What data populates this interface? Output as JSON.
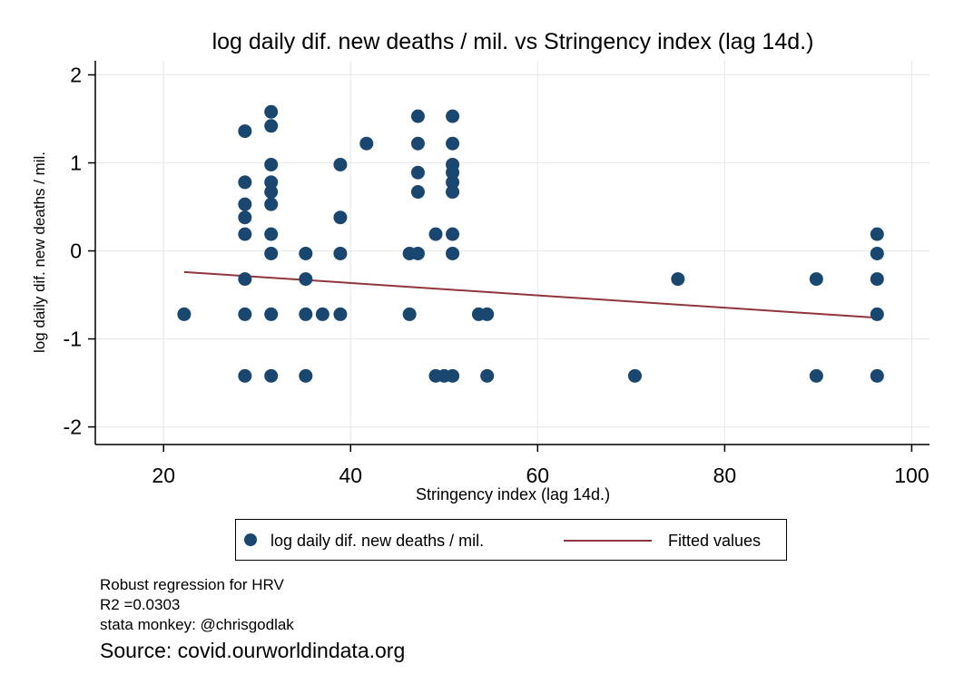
{
  "colors": {
    "marker": "#1a476f",
    "fit": "#90353b",
    "grid": "#eaeaea",
    "axis": "#000000"
  },
  "legend": {
    "series_label": "log daily dif. new deaths / mil.",
    "fit_label": "Fitted values"
  },
  "notes": {
    "line1": "Robust regression for HRV",
    "line2": "R2 =0.0303",
    "line3": "stata monkey: @chrisgodlak"
  },
  "source": "Source: covid.ourworldindata.org",
  "chart_data": {
    "type": "scatter",
    "title": "log daily dif. new deaths / mil. vs Stringency index (lag 14d.)",
    "xlabel": "Stringency index (lag 14d.)",
    "ylabel": "log daily dif. new deaths / mil.",
    "xlim": [
      12.7,
      101.9
    ],
    "ylim": [
      -2.2,
      2.16
    ],
    "xticks": [
      20,
      40,
      60,
      80,
      100
    ],
    "yticks": [
      -2,
      -1,
      0,
      1,
      2
    ],
    "grid": true,
    "legend_position": "bottom",
    "series": [
      {
        "name": "log daily dif. new deaths / mil.",
        "points": [
          [
            22.2,
            -0.72
          ],
          [
            28.7,
            1.36
          ],
          [
            28.7,
            0.78
          ],
          [
            28.7,
            0.53
          ],
          [
            28.7,
            0.38
          ],
          [
            28.7,
            0.19
          ],
          [
            28.7,
            -0.32
          ],
          [
            28.7,
            -0.72
          ],
          [
            28.7,
            -1.42
          ],
          [
            31.5,
            1.58
          ],
          [
            31.5,
            1.42
          ],
          [
            31.5,
            0.98
          ],
          [
            31.5,
            0.78
          ],
          [
            31.5,
            0.67
          ],
          [
            31.5,
            0.53
          ],
          [
            31.5,
            0.19
          ],
          [
            31.5,
            -0.03
          ],
          [
            31.5,
            -0.72
          ],
          [
            31.5,
            -1.42
          ],
          [
            35.2,
            -0.03
          ],
          [
            35.2,
            -0.32
          ],
          [
            35.2,
            -0.72
          ],
          [
            35.2,
            -1.42
          ],
          [
            37.0,
            -0.72
          ],
          [
            38.9,
            0.98
          ],
          [
            38.9,
            0.38
          ],
          [
            38.9,
            -0.03
          ],
          [
            38.9,
            -0.72
          ],
          [
            41.7,
            1.22
          ],
          [
            46.3,
            -0.03
          ],
          [
            46.3,
            -0.72
          ],
          [
            47.2,
            1.53
          ],
          [
            47.2,
            1.22
          ],
          [
            47.2,
            0.89
          ],
          [
            47.2,
            0.67
          ],
          [
            47.2,
            -0.03
          ],
          [
            49.1,
            0.19
          ],
          [
            49.1,
            -1.42
          ],
          [
            50.0,
            -1.42
          ],
          [
            50.9,
            1.53
          ],
          [
            50.9,
            1.22
          ],
          [
            50.9,
            0.98
          ],
          [
            50.9,
            0.89
          ],
          [
            50.9,
            0.78
          ],
          [
            50.9,
            0.67
          ],
          [
            50.9,
            0.19
          ],
          [
            50.9,
            -0.03
          ],
          [
            50.9,
            -1.42
          ],
          [
            53.7,
            -0.72
          ],
          [
            54.6,
            -0.72
          ],
          [
            54.6,
            -1.42
          ],
          [
            70.4,
            -1.42
          ],
          [
            75.0,
            -0.32
          ],
          [
            89.8,
            -0.32
          ],
          [
            89.8,
            -1.42
          ],
          [
            96.3,
            0.19
          ],
          [
            96.3,
            -0.03
          ],
          [
            96.3,
            -0.32
          ],
          [
            96.3,
            -0.72
          ],
          [
            96.3,
            -1.42
          ]
        ]
      },
      {
        "name": "Fitted values",
        "type": "line",
        "points": [
          [
            22.2,
            -0.24
          ],
          [
            96.3,
            -0.76
          ]
        ]
      }
    ]
  }
}
